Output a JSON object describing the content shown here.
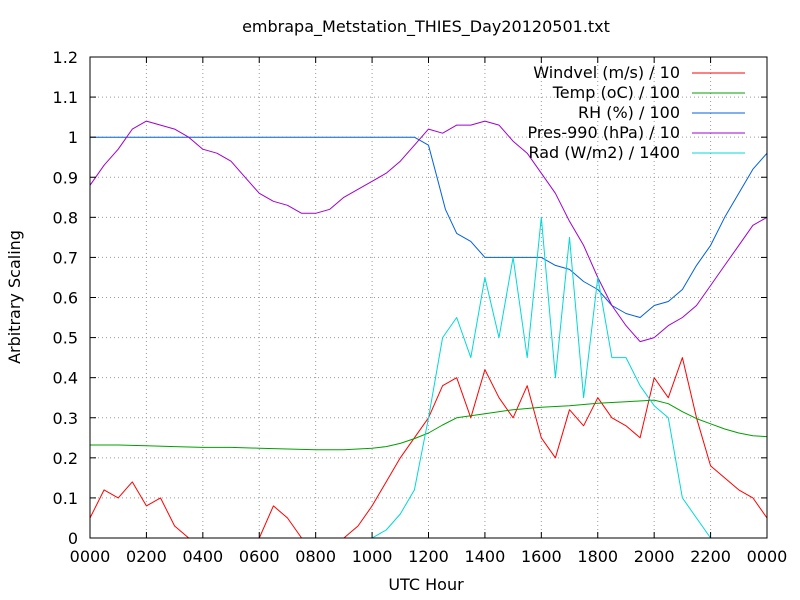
{
  "chart_data": {
    "type": "line",
    "title": "embrapa_Metstation_THIES_Day20120501.txt",
    "xlabel": "UTC Hour",
    "ylabel": "Arbitrary Scaling",
    "xlim": [
      0,
      24
    ],
    "ylim": [
      0,
      1.2
    ],
    "grid": true,
    "legend_position": "top-right",
    "x_tick_labels": [
      "0000",
      "0200",
      "0400",
      "0600",
      "0800",
      "1000",
      "1200",
      "1400",
      "1600",
      "1800",
      "2000",
      "2200",
      "0000"
    ],
    "y_tick_labels": [
      "0",
      "0.1",
      "0.2",
      "0.3",
      "0.4",
      "0.5",
      "0.6",
      "0.7",
      "0.8",
      "0.9",
      "1",
      "1.1",
      "1.2"
    ],
    "series": [
      {
        "name": "Windvel (m/s) / 10",
        "color": "#ff0000",
        "x": [
          0,
          0.5,
          1,
          1.5,
          2,
          2.5,
          3,
          3.5,
          4,
          4.5,
          5,
          5.5,
          6,
          6.5,
          7,
          7.5,
          8,
          8.5,
          9,
          9.5,
          10,
          10.5,
          11,
          11.5,
          12,
          12.5,
          13,
          13.5,
          14,
          14.5,
          15,
          15.5,
          16,
          16.5,
          17,
          17.5,
          18,
          18.5,
          19,
          19.5,
          20,
          20.5,
          21,
          21.5,
          22,
          22.5,
          23,
          23.5,
          24
        ],
        "y": [
          0.05,
          0.12,
          0.1,
          0.14,
          0.08,
          0.1,
          0.03,
          0.0,
          0.0,
          0.0,
          0.0,
          0.0,
          0.0,
          0.08,
          0.05,
          0.0,
          0.0,
          0.0,
          0.0,
          0.03,
          0.08,
          0.14,
          0.2,
          0.25,
          0.3,
          0.38,
          0.4,
          0.3,
          0.42,
          0.35,
          0.3,
          0.38,
          0.25,
          0.2,
          0.32,
          0.28,
          0.35,
          0.3,
          0.28,
          0.25,
          0.4,
          0.35,
          0.45,
          0.3,
          0.18,
          0.15,
          0.12,
          0.1,
          0.05
        ]
      },
      {
        "name": "Temp (oC) / 100",
        "color": "#00a000",
        "x": [
          0,
          1,
          2,
          3,
          4,
          5,
          6,
          7,
          8,
          9,
          10,
          10.5,
          11,
          11.5,
          12,
          12.5,
          13,
          14,
          15,
          16,
          17,
          18,
          19,
          20,
          20.5,
          21,
          21.5,
          22,
          22.5,
          23,
          23.5,
          24
        ],
        "y": [
          0.232,
          0.232,
          0.23,
          0.228,
          0.226,
          0.226,
          0.224,
          0.222,
          0.22,
          0.22,
          0.224,
          0.228,
          0.236,
          0.248,
          0.262,
          0.282,
          0.3,
          0.31,
          0.32,
          0.326,
          0.33,
          0.336,
          0.34,
          0.344,
          0.335,
          0.315,
          0.298,
          0.285,
          0.272,
          0.262,
          0.255,
          0.253
        ]
      },
      {
        "name": "RH (%) / 100",
        "color": "#0060e0",
        "x": [
          0,
          1,
          2,
          3,
          4,
          5,
          6,
          7,
          8,
          9,
          10,
          11,
          11.5,
          12,
          12.3,
          12.6,
          13,
          13.5,
          14,
          15,
          16,
          16.5,
          17,
          17.5,
          18,
          18.5,
          19,
          19.5,
          20,
          20.5,
          21,
          21.5,
          22,
          22.5,
          23,
          23.5,
          24
        ],
        "y": [
          1.0,
          1.0,
          1.0,
          1.0,
          1.0,
          1.0,
          1.0,
          1.0,
          1.0,
          1.0,
          1.0,
          1.0,
          1.0,
          0.98,
          0.9,
          0.82,
          0.76,
          0.74,
          0.7,
          0.7,
          0.7,
          0.68,
          0.67,
          0.64,
          0.62,
          0.58,
          0.56,
          0.55,
          0.58,
          0.59,
          0.62,
          0.68,
          0.73,
          0.8,
          0.86,
          0.92,
          0.96
        ]
      },
      {
        "name": "Pres-990 (hPa) / 10",
        "color": "#a000d0",
        "x": [
          0,
          0.5,
          1,
          1.5,
          2,
          2.5,
          3,
          3.5,
          4,
          4.5,
          5,
          5.5,
          6,
          6.5,
          7,
          7.5,
          8,
          8.5,
          9,
          9.5,
          10,
          10.5,
          11,
          11.5,
          12,
          12.5,
          13,
          13.5,
          14,
          14.5,
          15,
          15.5,
          16,
          16.5,
          17,
          17.5,
          18,
          18.5,
          19,
          19.5,
          20,
          20.5,
          21,
          21.5,
          22,
          22.5,
          23,
          23.5,
          24
        ],
        "y": [
          0.88,
          0.93,
          0.97,
          1.02,
          1.04,
          1.03,
          1.02,
          1.0,
          0.97,
          0.96,
          0.94,
          0.9,
          0.86,
          0.84,
          0.83,
          0.81,
          0.81,
          0.82,
          0.85,
          0.87,
          0.89,
          0.91,
          0.94,
          0.98,
          1.02,
          1.01,
          1.03,
          1.03,
          1.04,
          1.03,
          0.99,
          0.96,
          0.91,
          0.86,
          0.79,
          0.73,
          0.65,
          0.58,
          0.53,
          0.49,
          0.5,
          0.53,
          0.55,
          0.58,
          0.63,
          0.68,
          0.73,
          0.78,
          0.8
        ]
      },
      {
        "name": "Rad (W/m2) / 1400",
        "color": "#00d8d8",
        "x": [
          0,
          1,
          2,
          3,
          4,
          5,
          6,
          7,
          8,
          9,
          10,
          10.5,
          11,
          11.5,
          12,
          12.5,
          13,
          13.5,
          14,
          14.5,
          15,
          15.5,
          16,
          16.5,
          17,
          17.5,
          18,
          18.5,
          19,
          19.5,
          20,
          20.5,
          21,
          21.5,
          22,
          22.5,
          23,
          23.5,
          24
        ],
        "y": [
          0,
          0,
          0,
          0,
          0,
          0,
          0,
          0,
          0,
          0,
          0.0,
          0.02,
          0.06,
          0.12,
          0.3,
          0.5,
          0.55,
          0.45,
          0.65,
          0.5,
          0.7,
          0.45,
          0.8,
          0.4,
          0.75,
          0.35,
          0.65,
          0.45,
          0.45,
          0.38,
          0.33,
          0.3,
          0.1,
          0.05,
          0.0,
          0,
          0,
          0,
          0
        ]
      }
    ]
  }
}
